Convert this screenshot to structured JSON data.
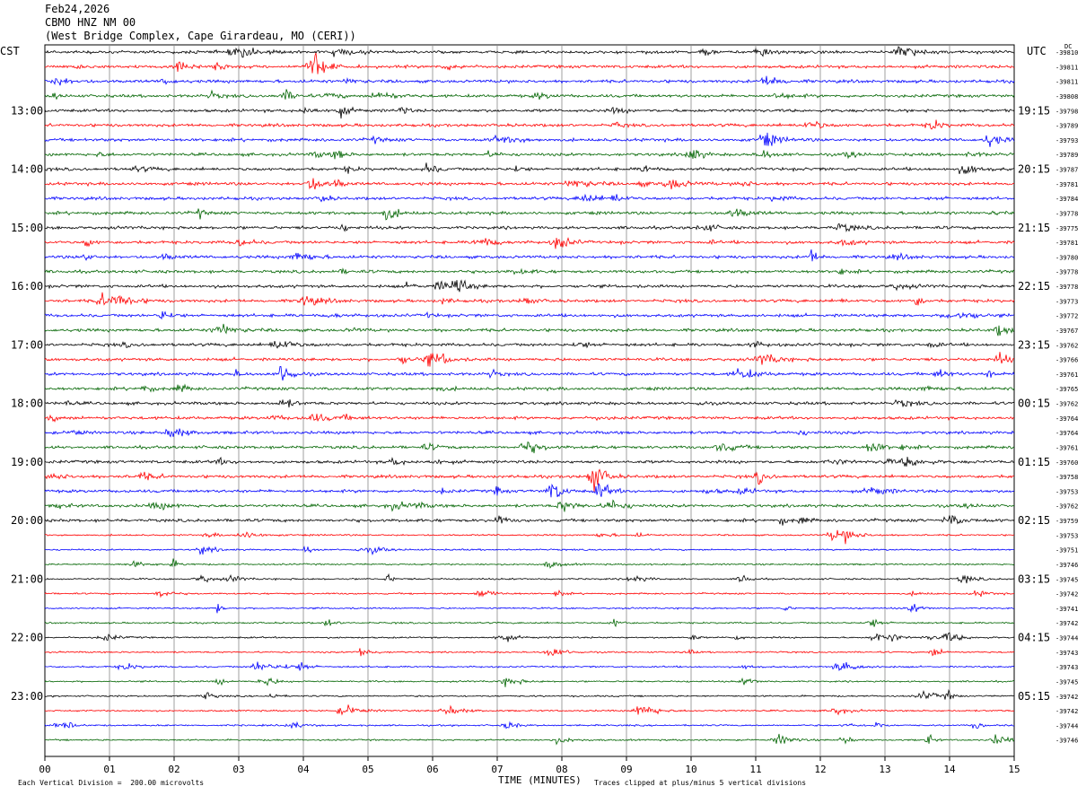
{
  "header": {
    "date": "Feb24,2026",
    "station": "CBMO HNZ NM 00",
    "location": "(West Bridge Complex, Cape Girardeau, MO (CERI))"
  },
  "left_axis_label": "CST",
  "right_axis_label": "UTC",
  "top_right_label": "DC",
  "footer": {
    "scale": "Each Vertical Division =  200.00 microvolts",
    "xlabel": "TIME (MINUTES)",
    "clip_note": "Traces clipped at plus/minus 5 vertical divisions"
  },
  "colors": [
    "#000000",
    "#ff0000",
    "#0000ff",
    "#006400"
  ],
  "chart_data": {
    "type": "line",
    "title": "",
    "xlabel": "TIME (MINUTES)",
    "xlim": [
      0,
      15
    ],
    "x_ticks": [
      "00",
      "01",
      "02",
      "03",
      "04",
      "05",
      "06",
      "07",
      "08",
      "09",
      "10",
      "11",
      "12",
      "13",
      "14",
      "15"
    ],
    "left_hour_labels": [
      "13:00",
      "14:00",
      "15:00",
      "16:00",
      "17:00",
      "18:00",
      "19:00",
      "20:00",
      "21:00",
      "22:00",
      "23:00"
    ],
    "right_hour_labels": [
      "19:15",
      "20:15",
      "21:15",
      "22:15",
      "23:15",
      "00:15",
      "01:15",
      "02:15",
      "03:15",
      "04:15",
      "05:15"
    ],
    "dc_offsets": [
      "-39810",
      "-39811",
      "-39811",
      "-39808",
      "-39798",
      "-39789",
      "-39793",
      "-39789",
      "-39787",
      "-39781",
      "-39784",
      "-39778",
      "-39775",
      "-39781",
      "-39780",
      "-39778",
      "-39778",
      "-39773",
      "-39772",
      "-39767",
      "-39762",
      "-39766",
      "-39761",
      "-39765",
      "-39762",
      "-39764",
      "-39764",
      "-39761",
      "-39760",
      "-39758",
      "-39753",
      "-39762",
      "-39759",
      "-39753",
      "-39751",
      "-39746",
      "-39745",
      "-39742",
      "-39741",
      "-39742",
      "-39744",
      "-39743",
      "-39743",
      "-39745",
      "-39742",
      "-39742",
      "-39744",
      "-39746"
    ],
    "series_count": 48,
    "traces_per_hour": 4,
    "minutes_per_trace": 15,
    "events": [
      {
        "trace": 29,
        "minute": 8.5,
        "amp": 9
      },
      {
        "trace": 30,
        "minute": 8.6,
        "amp": 5
      },
      {
        "trace": 1,
        "minute": 4.2,
        "amp": 6
      },
      {
        "trace": 1,
        "minute": 2.1,
        "amp": 4
      },
      {
        "trace": 11,
        "minute": 5.3,
        "amp": 4
      },
      {
        "trace": 16,
        "minute": 6.4,
        "amp": 4
      },
      {
        "trace": 22,
        "minute": 3.7,
        "amp": 4
      },
      {
        "trace": 27,
        "minute": 12.8,
        "amp": 4
      },
      {
        "trace": 7,
        "minute": 10.0,
        "amp": 4
      },
      {
        "trace": 41,
        "minute": 4.9,
        "amp": 3
      },
      {
        "trace": 33,
        "minute": 12.2,
        "amp": 3
      }
    ]
  }
}
